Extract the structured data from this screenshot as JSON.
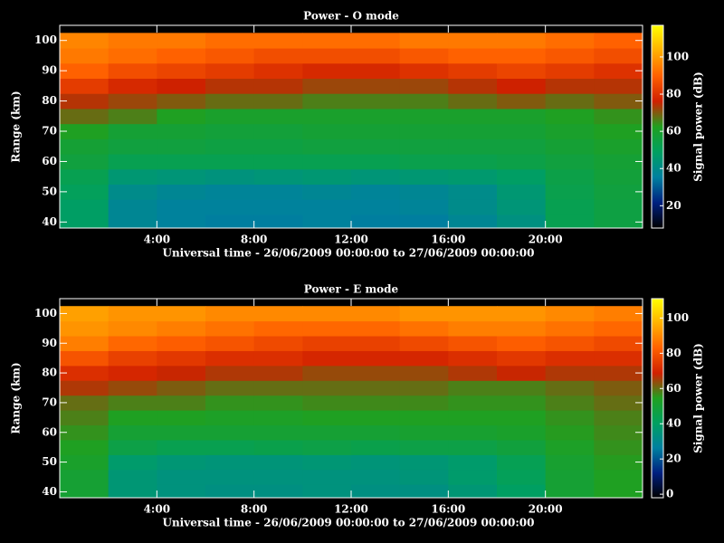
{
  "chart_data": [
    {
      "type": "heatmap",
      "title": "Power - O mode",
      "xlabel": "Universal time - 26/06/2009 00:00:00 to 27/06/2009 00:00:00",
      "ylabel": "Range (km)",
      "colorbar_label": "Signal power (dB)",
      "x": [
        1,
        3,
        5,
        7,
        9,
        11,
        13,
        15,
        17,
        19,
        21,
        23
      ],
      "y": [
        40,
        45,
        50,
        55,
        60,
        65,
        70,
        75,
        80,
        85,
        90,
        95,
        100
      ],
      "z": [
        [
          48,
          38,
          36,
          35,
          35,
          36,
          35,
          35,
          38,
          42,
          52,
          55
        ],
        [
          48,
          38,
          36,
          36,
          36,
          36,
          36,
          37,
          40,
          44,
          52,
          55
        ],
        [
          50,
          40,
          38,
          37,
          37,
          38,
          37,
          38,
          40,
          45,
          53,
          56
        ],
        [
          52,
          45,
          44,
          43,
          44,
          45,
          44,
          45,
          46,
          48,
          54,
          57
        ],
        [
          56,
          52,
          52,
          52,
          52,
          52,
          52,
          53,
          53,
          54,
          56,
          58
        ],
        [
          58,
          56,
          56,
          55,
          55,
          56,
          56,
          56,
          56,
          56,
          58,
          60
        ],
        [
          62,
          58,
          58,
          57,
          57,
          58,
          58,
          58,
          58,
          58,
          60,
          62
        ],
        [
          68,
          66,
          62,
          60,
          60,
          60,
          60,
          60,
          60,
          60,
          62,
          64
        ],
        [
          74,
          72,
          70,
          68,
          68,
          66,
          66,
          66,
          68,
          70,
          68,
          70
        ],
        [
          82,
          78,
          76,
          74,
          74,
          72,
          72,
          72,
          74,
          76,
          74,
          74
        ],
        [
          90,
          86,
          84,
          82,
          80,
          78,
          78,
          80,
          82,
          84,
          82,
          80
        ],
        [
          94,
          92,
          90,
          88,
          86,
          86,
          86,
          88,
          90,
          90,
          88,
          86
        ],
        [
          96,
          94,
          94,
          92,
          92,
          92,
          92,
          94,
          94,
          94,
          92,
          90
        ]
      ],
      "xlim": [
        0,
        24
      ],
      "xticks": [
        {
          "value": 4,
          "label": "4:00"
        },
        {
          "value": 8,
          "label": "8:00"
        },
        {
          "value": 12,
          "label": "12:00"
        },
        {
          "value": 16,
          "label": "16:00"
        },
        {
          "value": 20,
          "label": "20:00"
        }
      ],
      "ylim": [
        38,
        105
      ],
      "yticks": [
        40,
        50,
        60,
        70,
        80,
        90,
        100
      ],
      "zlim": [
        8,
        117
      ],
      "zticks": [
        20,
        40,
        60,
        80,
        100
      ],
      "colormap": [
        "#000000",
        "#002080",
        "#0080a0",
        "#00a060",
        "#20a020",
        "#d02000",
        "#ff6000",
        "#ffb000",
        "#ffff00"
      ]
    },
    {
      "type": "heatmap",
      "title": "Power - E mode",
      "xlabel": "Universal time - 26/06/2009 00:00:00 to 27/06/2009 00:00:00",
      "ylabel": "Range (km)",
      "colorbar_label": "Signal power (dB)",
      "x": [
        1,
        3,
        5,
        7,
        9,
        11,
        13,
        15,
        17,
        19,
        21,
        23
      ],
      "y": [
        40,
        45,
        50,
        55,
        60,
        65,
        70,
        75,
        80,
        85,
        90,
        95,
        100
      ],
      "z": [
        [
          50,
          36,
          34,
          33,
          33,
          34,
          33,
          33,
          36,
          40,
          50,
          54
        ],
        [
          50,
          36,
          34,
          34,
          34,
          34,
          34,
          35,
          38,
          42,
          50,
          54
        ],
        [
          52,
          38,
          36,
          35,
          35,
          36,
          35,
          36,
          38,
          43,
          51,
          55
        ],
        [
          54,
          46,
          44,
          44,
          45,
          46,
          45,
          46,
          46,
          48,
          53,
          56
        ],
        [
          56,
          50,
          50,
          50,
          50,
          50,
          50,
          51,
          51,
          52,
          55,
          57
        ],
        [
          58,
          54,
          54,
          53,
          53,
          54,
          54,
          54,
          54,
          54,
          56,
          58
        ],
        [
          60,
          58,
          58,
          56,
          56,
          57,
          57,
          57,
          56,
          56,
          58,
          60
        ],
        [
          66,
          64,
          62,
          60,
          60,
          60,
          60,
          60,
          58,
          58,
          60,
          62
        ],
        [
          72,
          70,
          68,
          66,
          66,
          64,
          64,
          64,
          66,
          68,
          66,
          66
        ],
        [
          80,
          76,
          74,
          72,
          72,
          70,
          70,
          70,
          72,
          74,
          72,
          72
        ],
        [
          88,
          84,
          82,
          80,
          78,
          76,
          76,
          78,
          80,
          82,
          80,
          78
        ],
        [
          92,
          90,
          88,
          86,
          84,
          84,
          84,
          86,
          88,
          88,
          86,
          84
        ],
        [
          94,
          92,
          92,
          90,
          90,
          90,
          90,
          92,
          92,
          92,
          90,
          88
        ]
      ],
      "xlim": [
        0,
        24
      ],
      "xticks": [
        {
          "value": 4,
          "label": "4:00"
        },
        {
          "value": 8,
          "label": "8:00"
        },
        {
          "value": 12,
          "label": "12:00"
        },
        {
          "value": 16,
          "label": "16:00"
        },
        {
          "value": 20,
          "label": "20:00"
        }
      ],
      "ylim": [
        38,
        105
      ],
      "yticks": [
        40,
        50,
        60,
        70,
        80,
        90,
        100
      ],
      "zlim": [
        -2,
        111
      ],
      "zticks": [
        0,
        20,
        40,
        60,
        80,
        100
      ],
      "colormap": [
        "#000000",
        "#002080",
        "#0080a0",
        "#00a060",
        "#20a020",
        "#d02000",
        "#ff6000",
        "#ffb000",
        "#ffff00"
      ]
    }
  ]
}
